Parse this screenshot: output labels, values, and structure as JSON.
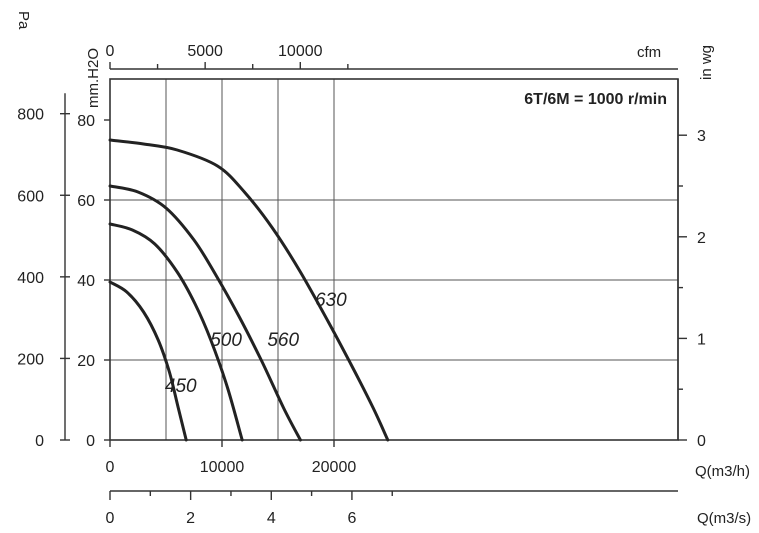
{
  "annotation": "6T/6M = 1000 r/min",
  "units": {
    "pa": "Pa",
    "mmh2o": "mm.H2O",
    "cfm": "cfm",
    "inwg": "in wg",
    "q_m3h": "Q(m3/h)",
    "q_m3s": "Q(m3/s)"
  },
  "colors": {
    "curve": "#222222",
    "grid": "#555555",
    "background": "#ffffff"
  },
  "chart_data": {
    "type": "line",
    "title": "6T/6M = 1000 r/min",
    "x_label": "Q(m3/h)",
    "y_label": "mm.H2O",
    "xlim": [
      0,
      25500
    ],
    "ylim": [
      0,
      80
    ],
    "grid": true,
    "x_ticks": [
      "0",
      "10000",
      "20000"
    ],
    "y_ticks": [
      "0",
      "20",
      "40",
      "60",
      "80"
    ],
    "secondary_axes": {
      "pa": {
        "label": "Pa",
        "ticks": [
          "0",
          "200",
          "400",
          "600",
          "800"
        ],
        "per_mmh2o": 9.80665
      },
      "in_wg": {
        "label": "in wg",
        "ticks": [
          "0",
          "1",
          "2",
          "3"
        ],
        "per_mmh2o": 0.0393701
      },
      "cfm": {
        "label": "cfm",
        "ticks": [
          "0",
          "5000",
          "10000"
        ],
        "per_m3h": 0.588578
      },
      "m3s": {
        "label": "Q(m3/s)",
        "ticks": [
          "0",
          "2",
          "4",
          "6"
        ],
        "per_m3h": 0.000277778
      }
    },
    "series": [
      {
        "name": "450",
        "x": [
          0,
          1500,
          3000,
          4300,
          5300,
          6100,
          6800
        ],
        "y": [
          39.5,
          37,
          32,
          25,
          17,
          8,
          0
        ]
      },
      {
        "name": "500",
        "x": [
          0,
          2000,
          4000,
          6000,
          7600,
          9000,
          10500,
          11800
        ],
        "y": [
          54,
          52.5,
          49,
          42,
          34,
          25,
          13,
          0
        ]
      },
      {
        "name": "560",
        "x": [
          0,
          2500,
          5000,
          7500,
          9500,
          11500,
          13500,
          15500,
          17000
        ],
        "y": [
          63.5,
          62,
          58,
          50,
          41,
          31,
          20,
          8,
          0
        ]
      },
      {
        "name": "630",
        "x": [
          0,
          3000,
          6000,
          9600,
          12000,
          14500,
          17000,
          19500,
          21500,
          23500,
          24800
        ],
        "y": [
          75,
          74,
          72.5,
          68.5,
          62,
          53,
          42,
          29.5,
          19,
          8,
          0
        ]
      }
    ]
  }
}
